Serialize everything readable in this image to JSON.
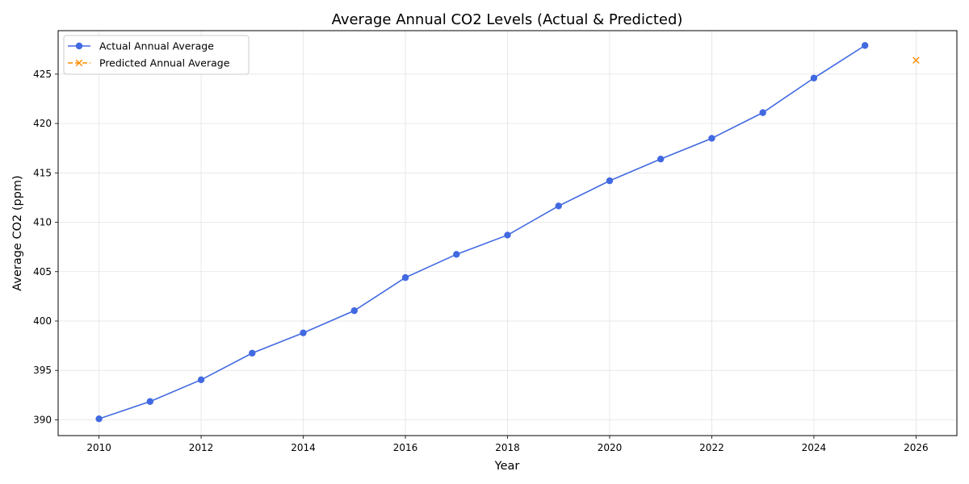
{
  "chart_data": {
    "type": "line",
    "title": "Average Annual CO2 Levels (Actual & Predicted)",
    "xlabel": "Year",
    "ylabel": "Average CO2 (ppm)",
    "xlim": [
      2009.2,
      2026.8
    ],
    "ylim": [
      388.4,
      429.4
    ],
    "x_ticks": [
      2010,
      2012,
      2014,
      2016,
      2018,
      2020,
      2022,
      2024,
      2026
    ],
    "y_ticks": [
      390,
      395,
      400,
      405,
      410,
      415,
      420,
      425
    ],
    "grid": true,
    "legend_position": "upper-left",
    "series": [
      {
        "name": "Actual Annual Average",
        "color": "#4169e1",
        "line_style": "solid",
        "marker": "circle",
        "x": [
          2010,
          2011,
          2012,
          2013,
          2014,
          2015,
          2016,
          2017,
          2018,
          2019,
          2020,
          2021,
          2022,
          2023,
          2024,
          2025
        ],
        "y": [
          390.1,
          391.85,
          394.05,
          396.75,
          398.8,
          401.05,
          404.4,
          406.75,
          408.7,
          411.65,
          414.2,
          416.4,
          418.5,
          421.1,
          424.6,
          427.9
        ]
      },
      {
        "name": "Predicted Annual Average",
        "color": "#ff8c00",
        "line_style": "dashed",
        "marker": "x",
        "x": [
          2026
        ],
        "y": [
          426.4
        ]
      }
    ]
  }
}
